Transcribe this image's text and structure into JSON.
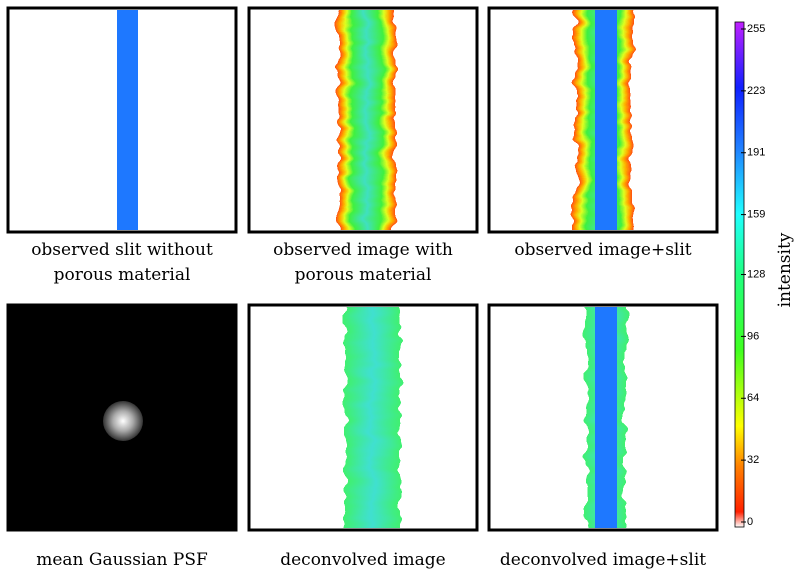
{
  "panels": [
    {
      "caption": [
        "observed slit without",
        "porous material"
      ]
    },
    {
      "caption": [
        "observed image with",
        "porous material"
      ]
    },
    {
      "caption": [
        "observed image+slit"
      ]
    },
    {
      "caption": [
        "mean Gaussian PSF"
      ]
    },
    {
      "caption": [
        "deconvolved image"
      ]
    },
    {
      "caption": [
        "deconvolved image+slit"
      ]
    }
  ],
  "colorbar": {
    "label": "intensity",
    "lim": [
      0,
      255
    ],
    "ticks": [
      0,
      32,
      64,
      96,
      128,
      159,
      191,
      223,
      255
    ]
  }
}
